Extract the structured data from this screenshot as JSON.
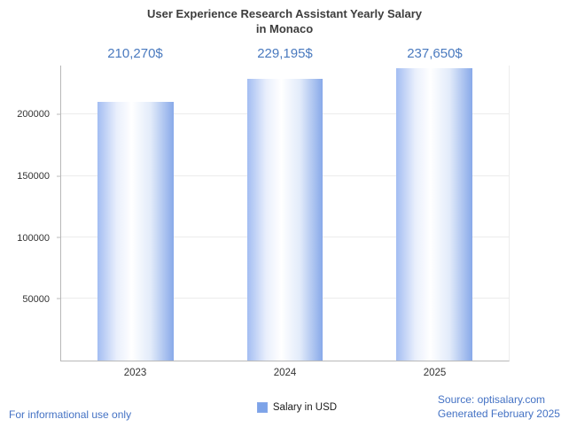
{
  "title": {
    "line1": "User Experience Research Assistant Yearly Salary",
    "line2": "in Monaco"
  },
  "chart_data": {
    "type": "bar",
    "title": "User Experience Research Assistant Yearly Salary in Monaco",
    "categories": [
      "2023",
      "2024",
      "2025"
    ],
    "values": [
      210270,
      229195,
      237650
    ],
    "value_labels": [
      "210,270$",
      "229,195$",
      "237,650$"
    ],
    "series_name": "Salary in USD",
    "xlabel": "",
    "ylabel": "",
    "ylim": [
      0,
      240000
    ],
    "yticks": [
      50000,
      100000,
      150000,
      200000
    ],
    "ytick_labels": [
      "50000",
      "100000",
      "150000",
      "200000"
    ],
    "grid": true,
    "legend_position": "bottom"
  },
  "legend": {
    "label": "Salary in USD"
  },
  "footer": {
    "disclaimer": "For informational use only",
    "source": "Source: optisalary.com",
    "generated": "Generated February 2025"
  },
  "colors": {
    "bar_left_edge": "#a3bdf2",
    "bar_highlight": "#ffffff",
    "bar_right_edge": "#88a9e9",
    "value_label": "#4a7abf",
    "footer_text": "#4472c4",
    "legend_swatch": "#7da3e8",
    "axis_line": "#b8b8b8",
    "gridline": "#ececec",
    "title_text": "#3d3d3d",
    "tick_text": "#333333"
  }
}
